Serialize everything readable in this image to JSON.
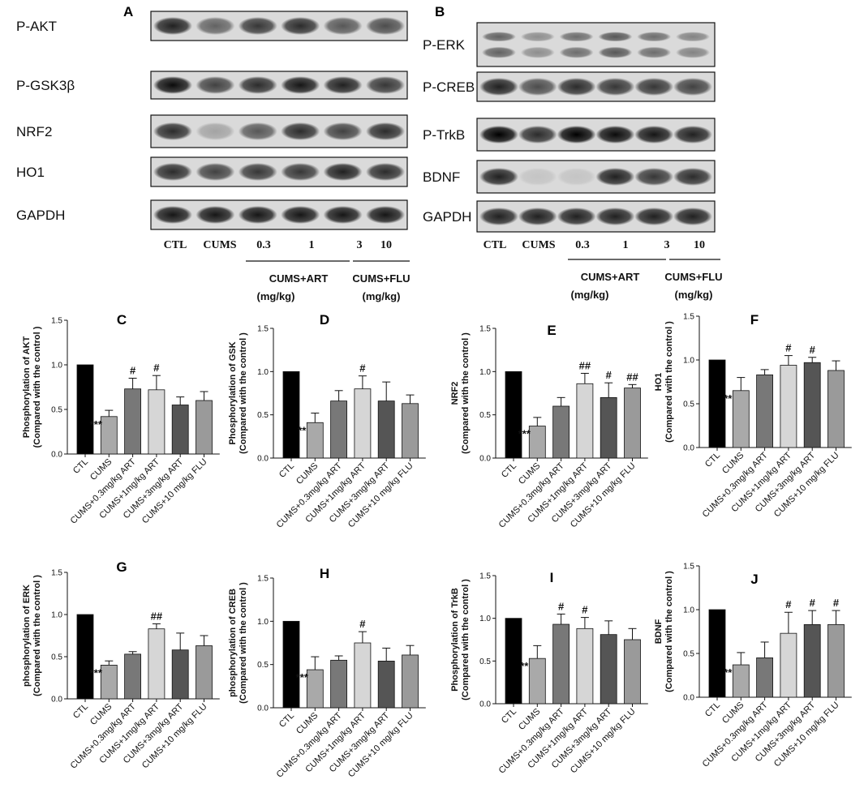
{
  "panel_letters": [
    "A",
    "B"
  ],
  "blots": {
    "left_labels": [
      "P-AKT",
      "P-GSK3β",
      "NRF2",
      "HO1",
      "GAPDH"
    ],
    "right_labels": [
      "P-ERK",
      "P-CREB",
      "P-TrkB",
      "BDNF",
      "GAPDH"
    ],
    "lane_labels": [
      "CTL",
      "CUMS",
      "0.3",
      "1",
      "3",
      "10"
    ],
    "group_art_line1": "CUMS+ART",
    "group_art_line2": "(mg/kg)",
    "group_flu_line1": "CUMS+FLU",
    "group_flu_line2": "(mg/kg)",
    "left_intensity": [
      [
        0.85,
        0.55,
        0.75,
        0.8,
        0.6,
        0.65
      ],
      [
        0.95,
        0.7,
        0.8,
        0.9,
        0.85,
        0.75
      ],
      [
        0.8,
        0.25,
        0.6,
        0.8,
        0.7,
        0.8
      ],
      [
        0.8,
        0.7,
        0.75,
        0.75,
        0.85,
        0.8
      ],
      [
        0.9,
        0.9,
        0.9,
        0.9,
        0.9,
        0.9
      ]
    ],
    "right_intensity": [
      [
        0.55,
        0.35,
        0.5,
        0.6,
        0.5,
        0.4
      ],
      [
        0.85,
        0.65,
        0.8,
        0.75,
        0.75,
        0.7
      ],
      [
        1.0,
        0.8,
        1.0,
        0.95,
        0.9,
        0.85
      ],
      [
        0.85,
        0.1,
        0.1,
        0.85,
        0.75,
        0.8
      ],
      [
        0.85,
        0.85,
        0.85,
        0.85,
        0.85,
        0.85
      ]
    ]
  },
  "bar_colors": [
    "#000000",
    "#a9a9a9",
    "#787878",
    "#d6d6d6",
    "#555555",
    "#9a9a9a"
  ],
  "chart_data": [
    {
      "letter": "C",
      "type": "bar",
      "ylabel": "Phosphorylation of AKT",
      "ylabel2": "(Compared with the control )",
      "ylim": [
        0,
        1.5
      ],
      "yticks": [
        "0.0",
        "0.5",
        "1.0",
        "1.5"
      ],
      "categories": [
        "CTL",
        "CUMS",
        "CUMS+0.3mg/kg ART",
        "CUMS+1mg/kg ART",
        "CUMS+3mg/kg ART",
        "CUMS+10 mg/kg FLU"
      ],
      "values": [
        1.0,
        0.42,
        0.73,
        0.72,
        0.55,
        0.6
      ],
      "errors": [
        0,
        0.07,
        0.12,
        0.16,
        0.09,
        0.1
      ],
      "significance": [
        "",
        "***",
        "#",
        "#",
        "",
        ""
      ]
    },
    {
      "letter": "D",
      "type": "bar",
      "ylabel": "Phosphorylation of GSK",
      "ylabel2": "(Compared with the control )",
      "ylim": [
        0,
        1.5
      ],
      "yticks": [
        "0.0",
        "0.5",
        "1.0",
        "1.5"
      ],
      "categories": [
        "CTL",
        "CUMS",
        "CUMS+0.3mg/kg ART",
        "CUMS+1mg/kg ART",
        "CUMS+3mg/kg ART",
        "CUMS+10 mg/kg FLU"
      ],
      "values": [
        1.0,
        0.41,
        0.66,
        0.8,
        0.66,
        0.63
      ],
      "errors": [
        0,
        0.11,
        0.12,
        0.15,
        0.22,
        0.1
      ],
      "significance": [
        "",
        "**",
        "",
        "#",
        "",
        ""
      ]
    },
    {
      "letter": "E",
      "type": "bar",
      "ylabel": "NRF2",
      "ylabel2": "(Compared with the control )",
      "ylim": [
        0,
        1.5
      ],
      "yticks": [
        "0.0",
        "0.5",
        "1.0",
        "1.5"
      ],
      "categories": [
        "CTL",
        "CUMS",
        "CUMS+0.3mg/kg ART",
        "CUMS+1mg/kg ART",
        "CUMS+3mg/kg ART",
        "CUMS+10 mg/kg FLU"
      ],
      "values": [
        1.0,
        0.37,
        0.6,
        0.86,
        0.7,
        0.81
      ],
      "errors": [
        0,
        0.1,
        0.1,
        0.12,
        0.17,
        0.04
      ],
      "significance": [
        "",
        "***",
        "",
        "##",
        "#",
        "##"
      ]
    },
    {
      "letter": "F",
      "type": "bar",
      "ylabel": "HO1",
      "ylabel2": "(Compared with the control )",
      "ylim": [
        0,
        1.5
      ],
      "yticks": [
        "0.0",
        "0.5",
        "1.0",
        "1.5"
      ],
      "categories": [
        "CTL",
        "CUMS",
        "CUMS+0.3mg/kg ART",
        "CUMS+1mg/kg ART",
        "CUMS+3mg/kg ART",
        "CUMS+10 mg/kg FLU"
      ],
      "values": [
        1.0,
        0.65,
        0.83,
        0.94,
        0.97,
        0.88
      ],
      "errors": [
        0,
        0.15,
        0.06,
        0.11,
        0.06,
        0.11
      ],
      "significance": [
        "",
        "**",
        "",
        "#",
        "#",
        ""
      ]
    },
    {
      "letter": "G",
      "type": "bar",
      "ylabel": "phosphorylation of ERK",
      "ylabel2": "(Compared with the control )",
      "ylim": [
        0,
        1.5
      ],
      "yticks": [
        "0.0",
        "0.5",
        "1.0",
        "1.5"
      ],
      "categories": [
        "CTL",
        "CUMS",
        "CUMS+0.3mg/kg ART",
        "CUMS+1mg/kg ART",
        "CUMS+3mg/kg ART",
        "CUMS+10 mg/kg FLU"
      ],
      "values": [
        1.0,
        0.4,
        0.53,
        0.83,
        0.58,
        0.63
      ],
      "errors": [
        0,
        0.05,
        0.03,
        0.06,
        0.2,
        0.12
      ],
      "significance": [
        "",
        "***",
        "",
        "##",
        "",
        ""
      ]
    },
    {
      "letter": "H",
      "type": "bar",
      "ylabel": "phosphorylation of CREB",
      "ylabel2": "(Compared with the control )",
      "ylim": [
        0,
        1.5
      ],
      "yticks": [
        "0.0",
        "0.5",
        "1.0",
        "1.5"
      ],
      "categories": [
        "CTL",
        "CUMS",
        "CUMS+0.3mg/kg ART",
        "CUMS+1mg/kg ART",
        "CUMS+3mg/kg ART",
        "CUMS+10 mg/kg FLU"
      ],
      "values": [
        1.0,
        0.44,
        0.55,
        0.75,
        0.54,
        0.61
      ],
      "errors": [
        0,
        0.15,
        0.05,
        0.13,
        0.15,
        0.11
      ],
      "significance": [
        "",
        "***",
        "",
        "#",
        "",
        ""
      ]
    },
    {
      "letter": "I",
      "type": "bar",
      "ylabel": "Phosphorylation of TrkB",
      "ylabel2": "(Compared with the control )",
      "ylim": [
        0,
        1.5
      ],
      "yticks": [
        "0.0",
        "0.5",
        "1.0",
        "1.5"
      ],
      "categories": [
        "CTL",
        "CUMS",
        "CUMS+0.3mg/kg ART",
        "CUMS+1mg/kg ART",
        "CUMS+3mg/kg ART",
        "CUMS+10 mg/kg FLU"
      ],
      "values": [
        1.0,
        0.53,
        0.93,
        0.88,
        0.81,
        0.75
      ],
      "errors": [
        0,
        0.15,
        0.12,
        0.13,
        0.16,
        0.13
      ],
      "significance": [
        "",
        "**",
        "#",
        "#",
        "",
        ""
      ]
    },
    {
      "letter": "J",
      "type": "bar",
      "ylabel": "BDNF",
      "ylabel2": "(Compared with the control )",
      "ylim": [
        0,
        1.5
      ],
      "yticks": [
        "0.0",
        "0.5",
        "1.0",
        "1.5"
      ],
      "categories": [
        "CTL",
        "CUMS",
        "CUMS+0.3mg/kg ART",
        "CUMS+1mg/kg ART",
        "CUMS+3mg/kg ART",
        "CUMS+10 mg/kg FLU"
      ],
      "values": [
        1.0,
        0.37,
        0.45,
        0.73,
        0.83,
        0.83
      ],
      "errors": [
        0,
        0.14,
        0.18,
        0.24,
        0.16,
        0.16
      ],
      "significance": [
        "",
        "**",
        "",
        "#",
        "#",
        "#"
      ]
    }
  ]
}
